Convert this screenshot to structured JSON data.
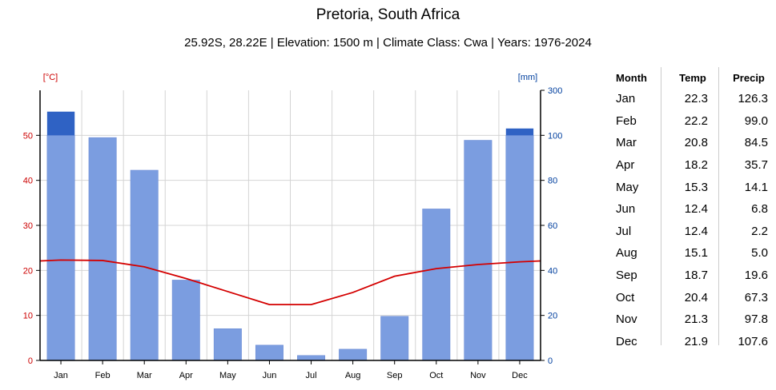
{
  "title": "Pretoria, South Africa",
  "subtitle": "25.92S, 28.22E | Elevation: 1500 m | Climate Class: Cwa | Years: 1976-2024",
  "chart_data": {
    "type": "bar",
    "categories": [
      "Jan",
      "Feb",
      "Mar",
      "Apr",
      "May",
      "Jun",
      "Jul",
      "Aug",
      "Sep",
      "Oct",
      "Nov",
      "Dec"
    ],
    "series": [
      {
        "kind": "bar",
        "axis": "right",
        "values": [
          126.3,
          99.0,
          84.5,
          35.7,
          14.1,
          6.8,
          2.2,
          5.0,
          19.6,
          67.3,
          97.8,
          107.6
        ]
      },
      {
        "kind": "line",
        "axis": "left",
        "values": [
          22.3,
          22.2,
          20.8,
          18.2,
          15.3,
          12.4,
          12.4,
          15.1,
          18.7,
          20.4,
          21.3,
          21.9
        ]
      }
    ],
    "left_axis": {
      "label": "[°C]",
      "ylim": [
        0,
        60
      ],
      "ticks": [
        0,
        10,
        20,
        30,
        40,
        50
      ],
      "color": "#cc0000"
    },
    "right_axis": {
      "label": "[mm]",
      "ylim": [
        0,
        300
      ],
      "ticks": [
        0,
        20,
        40,
        60,
        80,
        100,
        300
      ],
      "color": "#003f9e"
    },
    "bar_color": "#7b9de0",
    "bar_overflow_color": "#2f62c4",
    "line_color": "#d40000",
    "grid": true
  },
  "table": {
    "headers": {
      "month": "Month",
      "temp": "Temp",
      "precip": "Precip"
    },
    "rows": [
      {
        "month": "Jan",
        "temp": "22.3",
        "precip": "126.3"
      },
      {
        "month": "Feb",
        "temp": "22.2",
        "precip": "99.0"
      },
      {
        "month": "Mar",
        "temp": "20.8",
        "precip": "84.5"
      },
      {
        "month": "Apr",
        "temp": "18.2",
        "precip": "35.7"
      },
      {
        "month": "May",
        "temp": "15.3",
        "precip": "14.1"
      },
      {
        "month": "Jun",
        "temp": "12.4",
        "precip": "6.8"
      },
      {
        "month": "Jul",
        "temp": "12.4",
        "precip": "2.2"
      },
      {
        "month": "Aug",
        "temp": "15.1",
        "precip": "5.0"
      },
      {
        "month": "Sep",
        "temp": "18.7",
        "precip": "19.6"
      },
      {
        "month": "Oct",
        "temp": "20.4",
        "precip": "67.3"
      },
      {
        "month": "Nov",
        "temp": "21.3",
        "precip": "97.8"
      },
      {
        "month": "Dec",
        "temp": "21.9",
        "precip": "107.6"
      }
    ]
  }
}
